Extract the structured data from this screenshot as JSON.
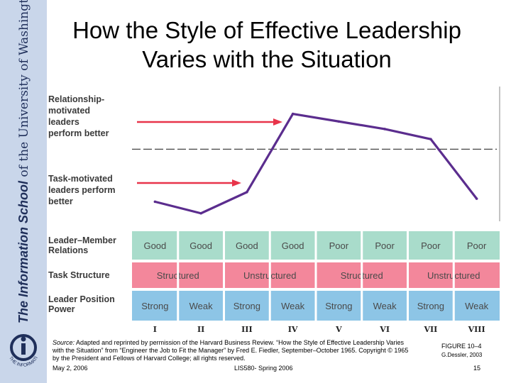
{
  "sidebar": {
    "brand_bold": "The Information School",
    "brand_rest": " of the University of Washington",
    "logo_text": "THE INFORMATION SCHOOL"
  },
  "slide": {
    "title_line1": "How the Style of Effective Leadership",
    "title_line2": "Varies with the Situation"
  },
  "chart_data": {
    "type": "line",
    "categories": [
      "I",
      "II",
      "III",
      "IV",
      "V",
      "VI",
      "VII",
      "VIII"
    ],
    "values": [
      3.6,
      1.3,
      5.5,
      21,
      19.5,
      18,
      16,
      4.2
    ],
    "ylim": [
      0,
      26
    ],
    "threshold": 14,
    "line_color": "#5b2d8e",
    "arrow_color": "#e8344a",
    "y_annotations": [
      {
        "lines": [
          "Relationship-",
          "motivated",
          "leaders",
          "perform better"
        ]
      },
      {
        "lines": [
          "Task-motivated",
          "leaders perform",
          "better"
        ]
      }
    ],
    "rows": [
      {
        "label": [
          "Leader–Member",
          "Relations"
        ],
        "color": "#a9dccb",
        "cells": [
          {
            "text": "Good",
            "span": 1
          },
          {
            "text": "Good",
            "span": 1
          },
          {
            "text": "Good",
            "span": 1
          },
          {
            "text": "Good",
            "span": 1
          },
          {
            "text": "Poor",
            "span": 1
          },
          {
            "text": "Poor",
            "span": 1
          },
          {
            "text": "Poor",
            "span": 1
          },
          {
            "text": "Poor",
            "span": 1
          }
        ]
      },
      {
        "label": [
          "Task Structure"
        ],
        "color": "#f3879b",
        "cells": [
          {
            "text": "Structured",
            "span": 2
          },
          {
            "text": "Unstructured",
            "span": 2
          },
          {
            "text": "Structured",
            "span": 2
          },
          {
            "text": "Unstructured",
            "span": 2
          }
        ]
      },
      {
        "label": [
          "Leader Position",
          "Power"
        ],
        "color": "#8dc5e6",
        "cells": [
          {
            "text": "Strong",
            "span": 1
          },
          {
            "text": "Weak",
            "span": 1
          },
          {
            "text": "Strong",
            "span": 1
          },
          {
            "text": "Weak",
            "span": 1
          },
          {
            "text": "Strong",
            "span": 1
          },
          {
            "text": "Weak",
            "span": 1
          },
          {
            "text": "Strong",
            "span": 1
          },
          {
            "text": "Weak",
            "span": 1
          }
        ]
      }
    ]
  },
  "footer": {
    "source_label": "Source:",
    "source_lines": [
      " Adapted and reprinted by permission of the Harvard Business Review. “How the Style of Effective Leadership Varies",
      "with the Situation” from “Engineer the Job to Fit the Manager” by Fred E. Fiedler, September–October 1965. Copyright © 1965",
      "by the President and Fellows of Harvard College; all rights reserved."
    ],
    "figure": "FIGURE 10–4",
    "credit": "G.Dessler, 2003",
    "date": "May 2, 2006",
    "course": "LIS580- Spring 2006",
    "page": "15"
  }
}
